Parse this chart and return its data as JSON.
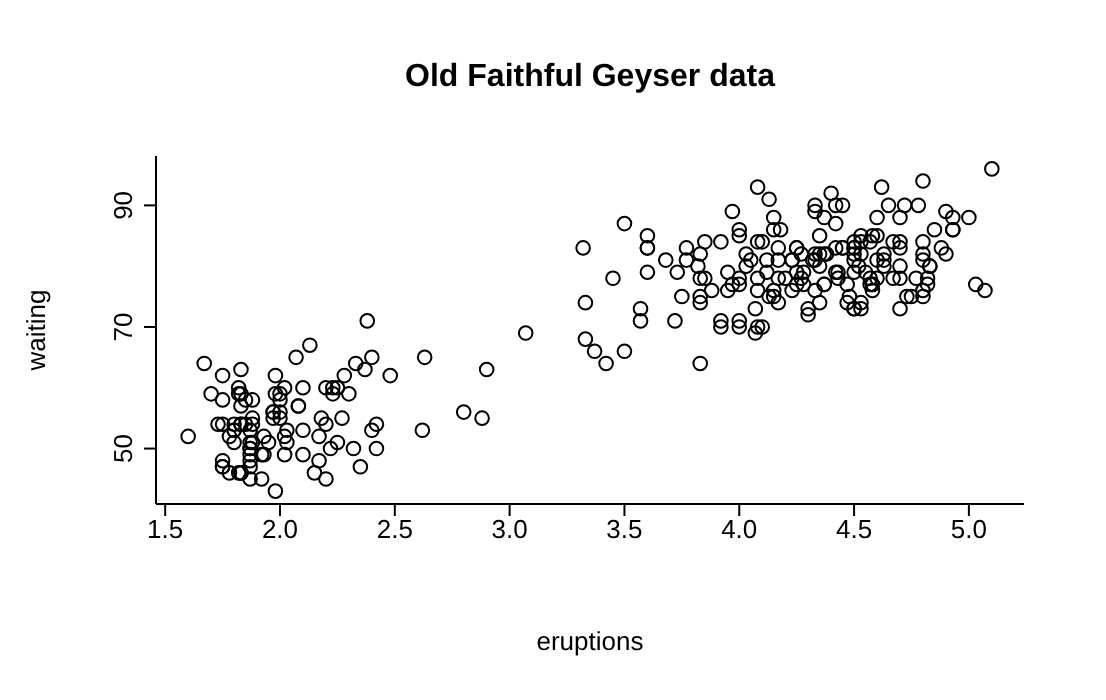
{
  "chart_data": {
    "type": "scatter",
    "title": "Old Faithful Geyser data",
    "xlabel": "eruptions",
    "ylabel": "waiting",
    "marker": "circle",
    "grid": false,
    "legend": false,
    "xlim": [
      1.46,
      5.24
    ],
    "xticks": [
      1.5,
      {
        "value": 2,
        "label": "2.0"
      },
      2.5,
      {
        "value": 3,
        "label": "3.0"
      },
      3.5,
      {
        "value": 4,
        "label": "4.0"
      },
      4.5,
      {
        "value": 5,
        "label": "5.0"
      }
    ],
    "ylim": [
      40.88,
      98.12
    ],
    "yticks": [
      50,
      70,
      90
    ],
    "series": [
      {
        "color": "#000000",
        "x": [
          3.6,
          1.8,
          3.33,
          2.28,
          4.53,
          2.88,
          4.7,
          3.6,
          1.95,
          4.35,
          1.83,
          3.92,
          4.2,
          1.75,
          4.7,
          2.17,
          1.75,
          4.8,
          1.6,
          4.25,
          1.8,
          1.75,
          3.45,
          3.07,
          4.53,
          3.6,
          1.97,
          4.08,
          3.85,
          4.43,
          4.3,
          4.47,
          3.37,
          4.03,
          3.83,
          2.02,
          1.87,
          4.83,
          1.83,
          4.78,
          4.35,
          1.88,
          4.57,
          1.75,
          4.53,
          3.32,
          3.83,
          2.1,
          4.63,
          2.0,
          4.8,
          4.72,
          1.83,
          4.83,
          1.73,
          4.88,
          3.72,
          1.67,
          4.57,
          4.32,
          2.23,
          4.5,
          1.75,
          4.8,
          1.82,
          4.4,
          4.17,
          4.7,
          2.07,
          4.7,
          4.03,
          1.97,
          4.5,
          4.0,
          1.98,
          5.07,
          2.02,
          4.57,
          3.88,
          3.6,
          4.13,
          4.33,
          4.1,
          2.63,
          4.07,
          4.93,
          3.95,
          4.52,
          2.17,
          4.0,
          2.2,
          4.33,
          1.87,
          4.82,
          1.83,
          4.3,
          4.67,
          3.75,
          1.87,
          4.9,
          2.48,
          4.37,
          2.1,
          4.5,
          4.05,
          1.87,
          4.7,
          1.78,
          4.85,
          3.68,
          4.73,
          2.3,
          4.9,
          4.42,
          1.7,
          4.63,
          2.32,
          4.6,
          1.82,
          4.42,
          2.62,
          4.07,
          4.25,
          1.97,
          4.6,
          3.77,
          1.92,
          4.5,
          2.27,
          4.65,
          1.87,
          4.17,
          2.8,
          4.33,
          1.83,
          4.38,
          1.88,
          4.93,
          2.03,
          3.73,
          4.23,
          2.23,
          4.53,
          4.82,
          4.33,
          1.98,
          4.63,
          2.02,
          5.1,
          1.8,
          5.03,
          4.0,
          2.4,
          4.6,
          3.57,
          4.0,
          4.5,
          4.08,
          1.8,
          3.97,
          2.2,
          4.15,
          2.0,
          3.83,
          3.5,
          4.58,
          2.37,
          5.0,
          1.93,
          4.62,
          1.92,
          2.08,
          4.58,
          3.33,
          4.17,
          4.33,
          4.5,
          2.42,
          4.0,
          4.17,
          1.88,
          4.58,
          4.25,
          3.77,
          2.03,
          4.43,
          4.08,
          1.83,
          4.42,
          2.18,
          4.8,
          1.83,
          4.8,
          4.1,
          3.97,
          4.23,
          3.5,
          4.37,
          2.25,
          4.67,
          2.1,
          4.35,
          4.13,
          1.87,
          4.6,
          1.78,
          4.37,
          3.85,
          1.93,
          4.5,
          2.38,
          4.7,
          1.87,
          3.83,
          3.42,
          4.23,
          2.4,
          4.8,
          2.0,
          4.15,
          1.87,
          4.27,
          1.75,
          4.48,
          4.0,
          4.12,
          4.08,
          4.27,
          3.92,
          4.55,
          4.08,
          2.42,
          4.18,
          2.22,
          4.45,
          1.88,
          1.85,
          4.28,
          3.95,
          2.33,
          4.15,
          2.35,
          4.93,
          2.9,
          4.58,
          3.83,
          2.08,
          4.37,
          2.13,
          4.35,
          2.2,
          4.45,
          3.57,
          4.5,
          4.15,
          3.82,
          3.92,
          4.45,
          2.0,
          4.28,
          4.77,
          4.53,
          1.85,
          4.25,
          1.98,
          2.25,
          4.75,
          4.12,
          2.15,
          4.42,
          1.82,
          4.47
        ],
        "values": [
          79,
          54,
          74,
          62,
          85,
          55,
          88,
          85,
          51,
          85,
          54,
          84,
          78,
          47,
          83,
          52,
          62,
          84,
          52,
          79,
          51,
          47,
          78,
          69,
          74,
          83,
          55,
          76,
          78,
          79,
          73,
          77,
          66,
          80,
          74,
          52,
          48,
          80,
          59,
          90,
          80,
          58,
          84,
          58,
          73,
          83,
          64,
          53,
          82,
          59,
          75,
          90,
          54,
          80,
          54,
          83,
          71,
          64,
          77,
          81,
          59,
          84,
          48,
          82,
          60,
          92,
          78,
          78,
          65,
          73,
          82,
          56,
          79,
          71,
          62,
          76,
          60,
          78,
          76,
          83,
          75,
          82,
          70,
          65,
          73,
          88,
          76,
          80,
          48,
          86,
          60,
          90,
          50,
          78,
          63,
          72,
          84,
          75,
          51,
          82,
          62,
          88,
          49,
          83,
          81,
          47,
          84,
          52,
          86,
          81,
          75,
          59,
          89,
          79,
          59,
          81,
          50,
          85,
          59,
          87,
          53,
          69,
          77,
          56,
          88,
          81,
          45,
          82,
          55,
          90,
          45,
          83,
          56,
          89,
          46,
          82,
          51,
          86,
          53,
          79,
          81,
          60,
          82,
          77,
          76,
          59,
          80,
          49,
          96,
          53,
          77,
          77,
          65,
          81,
          71,
          70,
          81,
          93,
          53,
          89,
          45,
          86,
          58,
          78,
          66,
          76,
          63,
          88,
          52,
          93,
          49,
          57,
          77,
          68,
          81,
          81,
          73,
          50,
          85,
          74,
          55,
          77,
          83,
          83,
          51,
          78,
          84,
          46,
          83,
          55,
          81,
          57,
          76,
          84,
          77,
          81,
          87,
          77,
          51,
          78,
          60,
          82,
          91,
          53,
          78,
          46,
          77,
          84,
          49,
          83,
          71,
          80,
          49,
          75,
          64,
          76,
          53,
          94,
          55,
          76,
          50,
          82,
          54,
          75,
          78,
          79,
          78,
          78,
          70,
          79,
          70,
          54,
          86,
          50,
          90,
          54,
          54,
          77,
          79,
          64,
          75,
          47,
          86,
          63,
          85,
          82,
          57,
          82,
          67,
          74,
          54,
          83,
          73,
          73,
          88,
          80,
          71,
          83,
          56,
          79,
          78,
          84,
          58,
          83,
          43,
          60,
          75,
          81,
          46,
          90,
          46,
          74
        ]
      }
    ]
  }
}
